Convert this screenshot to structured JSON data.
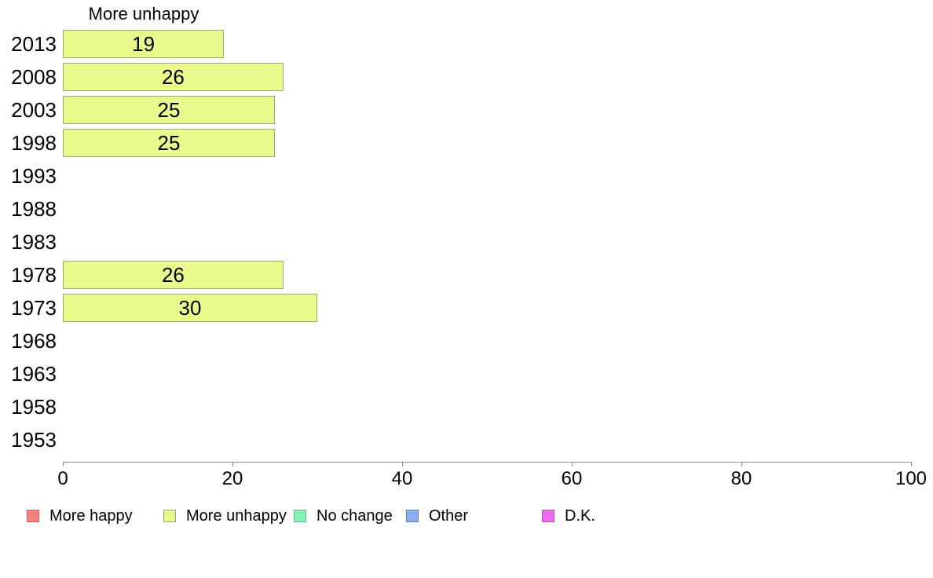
{
  "chart_data": {
    "type": "bar",
    "orientation": "horizontal",
    "title": "More unhappy",
    "categories": [
      "2013",
      "2008",
      "2003",
      "1998",
      "1993",
      "1988",
      "1983",
      "1978",
      "1973",
      "1968",
      "1963",
      "1958",
      "1953"
    ],
    "values": [
      19,
      26,
      25,
      25,
      null,
      null,
      null,
      26,
      30,
      null,
      null,
      null,
      null
    ],
    "value_labels_shown": true,
    "xlabel": "",
    "ylabel": "",
    "xlim": [
      0,
      100
    ],
    "x_ticks": [
      0,
      20,
      40,
      60,
      80,
      100
    ],
    "grid": false,
    "bar_fill_color": "#E9F98B",
    "bar_border_color": "#9FA484",
    "axis_color": "#8a8a8a",
    "legend_position": "bottom",
    "legend": [
      {
        "label": "More happy",
        "color": "#F58181",
        "border_color": "#C9615F"
      },
      {
        "label": "More unhappy",
        "color": "#E9F98B",
        "border_color": "#9EA873"
      },
      {
        "label": "No change",
        "color": "#85F2AF",
        "border_color": "#5FBF8A"
      },
      {
        "label": "Other",
        "color": "#88ADF2",
        "border_color": "#5F82C0"
      },
      {
        "label": "D.K.",
        "color": "#EE6FEE",
        "border_color": "#BC54BC"
      }
    ]
  }
}
